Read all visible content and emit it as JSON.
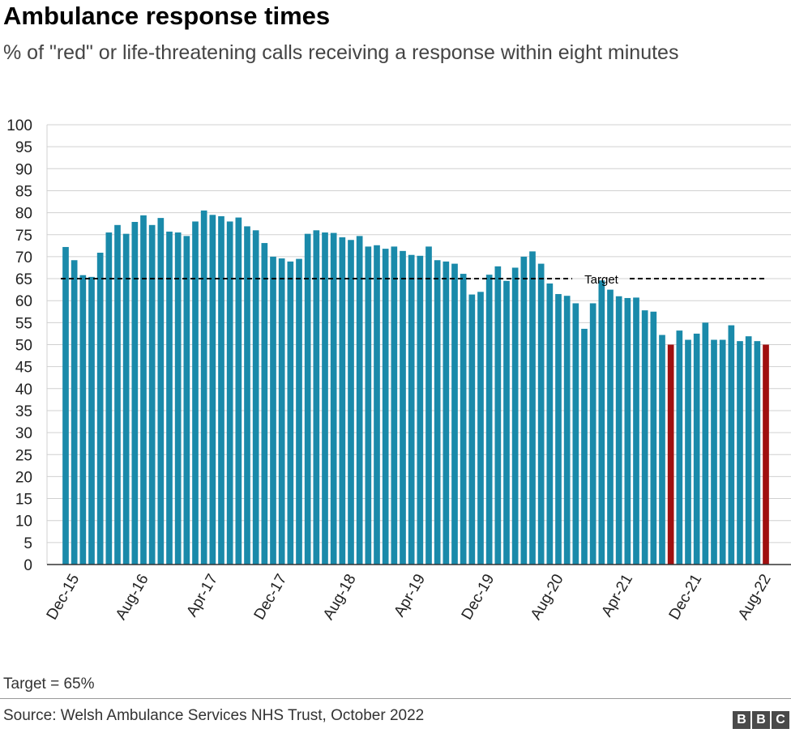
{
  "header": {
    "title": "Ambulance response times",
    "subtitle": "% of \"red\" or life-threatening calls receiving a response within eight minutes"
  },
  "footer": {
    "note": "Target = 65%",
    "source": "Source: Welsh Ambulance Services NHS Trust, October 2022",
    "logo_letters": [
      "B",
      "B",
      "C"
    ]
  },
  "colors": {
    "bar": "#1a8aaa",
    "highlight": "#a01010",
    "grid": "#d0d0d0",
    "target_line": "#000000"
  },
  "chart_data": {
    "type": "bar",
    "title": "Ambulance response times",
    "subtitle": "% of \"red\" or life-threatening calls receiving a response within eight minutes",
    "x_start": "Dec-15",
    "x_tick_labels": [
      "Dec-15",
      "Aug-16",
      "Apr-17",
      "Dec-17",
      "Aug-18",
      "Apr-19",
      "Dec-19",
      "Aug-20",
      "Apr-21",
      "Dec-21",
      "Aug-22"
    ],
    "ylim": [
      0,
      100
    ],
    "y_ticks": [
      0,
      5,
      10,
      15,
      20,
      25,
      30,
      35,
      40,
      45,
      50,
      55,
      60,
      65,
      70,
      75,
      80,
      85,
      90,
      95,
      100
    ],
    "grid": true,
    "values": [
      72.2,
      69.2,
      65.8,
      65.4,
      70.9,
      75.5,
      77.2,
      75.2,
      77.9,
      79.4,
      77.2,
      78.8,
      75.7,
      75.5,
      74.7,
      78.0,
      80.5,
      79.5,
      79.2,
      78.0,
      78.9,
      76.9,
      76.0,
      73.1,
      70.0,
      69.6,
      68.9,
      69.5,
      75.2,
      76.0,
      75.5,
      75.4,
      74.4,
      73.8,
      74.7,
      72.3,
      72.6,
      71.8,
      72.3,
      71.3,
      70.4,
      70.2,
      72.3,
      69.2,
      68.9,
      68.4,
      66.1,
      61.4,
      62.0,
      65.9,
      67.8,
      64.5,
      67.5,
      70.0,
      71.2,
      68.4,
      63.9,
      61.5,
      61.1,
      59.4,
      53.6,
      59.4,
      64.6,
      62.5,
      61.0,
      60.6,
      60.7,
      57.8,
      57.5,
      52.2,
      50.0,
      53.2,
      51.1,
      52.5,
      55.0,
      51.1,
      51.1,
      54.4,
      50.8,
      51.9,
      50.8,
      50.0
    ],
    "highlighted_indices": [
      70,
      81
    ],
    "target": {
      "value": 65,
      "label": "Target"
    }
  }
}
